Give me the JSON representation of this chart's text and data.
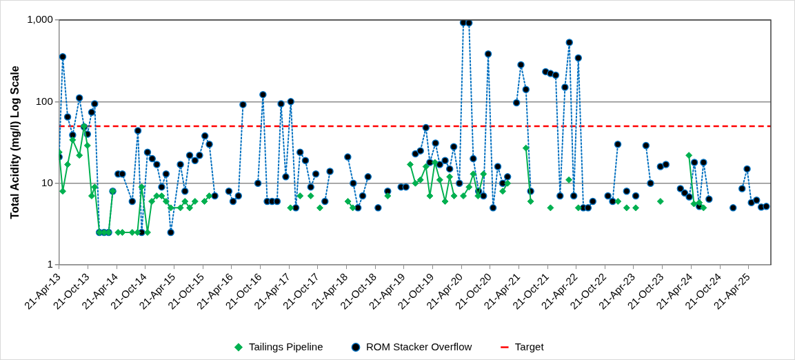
{
  "chart_data": {
    "type": "line",
    "ylabel": "Total Acidity (mg/l) Log Scale",
    "log": "y",
    "grid": "y",
    "legend": "bottom",
    "xlim": [
      "2013-04-21",
      "2025-09-10"
    ],
    "xticks": [
      {
        "value": "2013-04-21",
        "label": "21-Apr-13"
      },
      {
        "value": "2013-10-21",
        "label": "21-Oct-13"
      },
      {
        "value": "2014-04-21",
        "label": "21-Apr-14"
      },
      {
        "value": "2014-10-21",
        "label": "21-Oct-14"
      },
      {
        "value": "2015-04-21",
        "label": "21-Apr-15"
      },
      {
        "value": "2015-10-21",
        "label": "21-Oct-15"
      },
      {
        "value": "2016-04-21",
        "label": "21-Apr-16"
      },
      {
        "value": "2016-10-21",
        "label": "21-Oct-16"
      },
      {
        "value": "2017-04-21",
        "label": "21-Apr-17"
      },
      {
        "value": "2017-10-21",
        "label": "21-Oct-17"
      },
      {
        "value": "2018-04-21",
        "label": "21-Apr-18"
      },
      {
        "value": "2018-10-21",
        "label": "21-Oct-18"
      },
      {
        "value": "2019-04-21",
        "label": "21-Apr-19"
      },
      {
        "value": "2019-10-21",
        "label": "21-Oct-19"
      },
      {
        "value": "2020-04-21",
        "label": "21-Apr-20"
      },
      {
        "value": "2020-10-21",
        "label": "21-Oct-20"
      },
      {
        "value": "2021-04-21",
        "label": "21-Apr-21"
      },
      {
        "value": "2021-10-21",
        "label": "21-Oct-21"
      },
      {
        "value": "2022-04-21",
        "label": "21-Apr-22"
      },
      {
        "value": "2022-10-21",
        "label": "21-Oct-22"
      },
      {
        "value": "2023-04-21",
        "label": "21-Apr-23"
      },
      {
        "value": "2023-10-21",
        "label": "21-Oct-23"
      },
      {
        "value": "2024-04-21",
        "label": "21-Apr-24"
      },
      {
        "value": "2024-10-21",
        "label": "21-Oct-24"
      },
      {
        "value": "2025-04-21",
        "label": "21-Apr-25"
      }
    ],
    "ylim": [
      1,
      1000
    ],
    "yticks": [
      1,
      10,
      100,
      {
        "value": 1000,
        "label": "1,000"
      }
    ],
    "series": [
      {
        "name": "Tailings Pipeline",
        "color": "#00b050",
        "marker": "diamond",
        "line_style": "solid",
        "x": [
          "2013-04-21",
          "2013-05-14",
          "2013-06-14",
          "2013-07-16",
          "2013-08-28",
          "2013-09-27",
          "2013-10-18",
          "2013-11-14",
          "2013-12-03",
          "2014-01-02",
          "2014-02-01",
          "2014-03-02",
          "2014-03-28",
          "2014-04-15",
          "2014-05-01",
          "2014-05-28",
          "2014-07-30",
          "2014-09-01",
          "2014-09-28",
          "2014-11-04",
          "2014-12-01",
          "2015-01-01",
          "2015-02-02",
          "2015-03-02",
          "2015-04-01",
          "2015-06-01",
          "2015-06-30",
          "2015-07-30",
          "2015-09-02",
          "2015-10-01",
          "2015-11-01",
          "2015-12-01",
          "2016-06-01",
          "2017-05-01",
          "2017-06-01",
          "2017-07-01",
          "2017-08-01",
          "2017-09-07",
          "2017-10-05",
          "2017-11-04",
          "2018-02-01",
          "2018-05-01",
          "2018-06-01",
          "2018-09-01",
          "2019-01-09",
          "2019-03-01",
          "2019-06-01",
          "2019-07-04",
          "2019-08-05",
          "2019-09-09",
          "2019-10-04",
          "2019-11-05",
          "2019-12-06",
          "2020-01-09",
          "2020-02-07",
          "2020-03-06",
          "2020-04-05",
          "2020-05-04",
          "2020-06-09",
          "2020-07-06",
          "2020-08-05",
          "2020-09-09",
          "2020-11-01",
          "2021-01-09",
          "2021-02-09",
          "2021-04-01",
          "2021-06-06",
          "2021-07-06",
          "2021-09-01",
          "2021-11-09",
          "2022-01-01",
          "2022-03-06",
          "2022-04-01",
          "2022-05-05",
          "2022-09-01",
          "2023-01-12",
          "2023-02-10",
          "2023-03-08",
          "2023-04-05",
          "2023-05-05",
          "2023-07-01",
          "2023-10-09",
          "2024-01-01",
          "2024-04-07",
          "2024-05-09",
          "2024-06-12",
          "2024-07-09"
        ],
        "values": [
          24,
          8,
          17,
          34,
          22,
          50,
          29,
          7,
          9,
          2.5,
          2.5,
          2.5,
          8,
          null,
          2.5,
          2.5,
          2.5,
          2.5,
          9,
          2.5,
          6,
          7,
          7,
          6,
          5,
          5,
          6,
          5,
          6,
          null,
          6,
          7,
          null,
          5,
          null,
          7,
          null,
          7,
          null,
          5,
          null,
          6,
          5,
          null,
          7,
          null,
          17,
          10,
          11,
          16,
          7,
          18,
          11,
          6,
          12,
          7,
          null,
          7,
          9,
          13,
          7,
          13,
          null,
          8,
          10,
          null,
          27,
          6,
          null,
          5,
          null,
          11,
          null,
          5,
          null,
          6,
          null,
          5,
          null,
          5,
          null,
          6,
          null,
          22,
          5.6,
          5.8,
          5
        ]
      },
      {
        "name": "ROM Stacker Overflow",
        "color": "#0070c0",
        "marker": "circle",
        "line_style": "dotted",
        "x": [
          "2013-04-21",
          "2013-05-14",
          "2013-06-14",
          "2013-07-16",
          "2013-08-28",
          "2013-09-27",
          "2013-10-18",
          "2013-11-14",
          "2013-12-03",
          "2014-01-02",
          "2014-02-01",
          "2014-03-02",
          "2014-03-28",
          "2014-04-15",
          "2014-05-01",
          "2014-05-28",
          "2014-07-30",
          "2014-09-04",
          "2014-09-28",
          "2014-11-04",
          "2014-12-04",
          "2015-01-02",
          "2015-02-02",
          "2015-03-02",
          "2015-04-01",
          "2015-06-01",
          "2015-06-30",
          "2015-07-30",
          "2015-09-02",
          "2015-10-01",
          "2015-11-04",
          "2015-12-02",
          "2016-01-06",
          "2016-02-15",
          "2016-04-04",
          "2016-05-01",
          "2016-06-04",
          "2016-07-03",
          "2016-08-20",
          "2016-10-06",
          "2016-11-07",
          "2016-12-04",
          "2017-01-04",
          "2017-02-05",
          "2017-03-02",
          "2017-04-01",
          "2017-05-03",
          "2017-06-04",
          "2017-07-01",
          "2017-08-04",
          "2017-09-07",
          "2017-10-09",
          "2017-11-05",
          "2017-12-06",
          "2018-01-07",
          "2018-03-01",
          "2018-04-30",
          "2018-06-04",
          "2018-07-04",
          "2018-08-03",
          "2018-09-06",
          "2018-10-05",
          "2018-11-09",
          "2018-12-10",
          "2019-01-09",
          "2019-02-20",
          "2019-04-04",
          "2019-05-05",
          "2019-06-05",
          "2019-07-04",
          "2019-08-05",
          "2019-09-09",
          "2019-10-04",
          "2019-11-09",
          "2019-12-06",
          "2020-01-09",
          "2020-02-07",
          "2020-03-04",
          "2020-04-09",
          "2020-05-04",
          "2020-06-09",
          "2020-07-06",
          "2020-08-09",
          "2020-09-09",
          "2020-10-09",
          "2020-11-09",
          "2020-12-09",
          "2021-01-09",
          "2021-02-09",
          "2021-03-10",
          "2021-04-07",
          "2021-05-05",
          "2021-06-06",
          "2021-07-06",
          "2021-08-20",
          "2021-10-09",
          "2021-11-09",
          "2021-12-12",
          "2022-01-09",
          "2022-02-09",
          "2022-03-09",
          "2022-04-06",
          "2022-05-05",
          "2022-06-06",
          "2022-07-06",
          "2022-08-05",
          "2022-09-20",
          "2022-11-09",
          "2022-12-09",
          "2023-01-11",
          "2023-02-10",
          "2023-03-08",
          "2023-04-05",
          "2023-05-05",
          "2023-06-05",
          "2023-07-09",
          "2023-08-07",
          "2023-09-05",
          "2023-10-09",
          "2023-11-13",
          "2023-12-25",
          "2024-02-13",
          "2024-03-11",
          "2024-04-09",
          "2024-05-12",
          "2024-06-12",
          "2024-07-09",
          "2024-08-13",
          "2024-10-25",
          "2025-01-13",
          "2025-02-10",
          "2025-03-11",
          "2025-04-12",
          "2025-05-09",
          "2025-06-11",
          "2025-07-11",
          "2025-08-12"
        ],
        "values": [
          21,
          355,
          65,
          39,
          111,
          49,
          40,
          74,
          94,
          2.5,
          2.5,
          2.5,
          8,
          null,
          13,
          13,
          6,
          44,
          2.5,
          24,
          20,
          17,
          9,
          13,
          2.5,
          17,
          8,
          22,
          19,
          22,
          38,
          30,
          7,
          null,
          8,
          6,
          7,
          92,
          null,
          10,
          122,
          6,
          6,
          6,
          94,
          12,
          100,
          5,
          24,
          19,
          9,
          13,
          null,
          6,
          14,
          null,
          21,
          10,
          5,
          7,
          12,
          null,
          5,
          null,
          8,
          null,
          9,
          9,
          null,
          23,
          25,
          48,
          18,
          31,
          17,
          19,
          15,
          28,
          10,
          930,
          920,
          20,
          8,
          7,
          383,
          5,
          16,
          10,
          12,
          null,
          97,
          283,
          141,
          8,
          null,
          233,
          221,
          211,
          7,
          150,
          532,
          7,
          343,
          5,
          5,
          6,
          null,
          7,
          6,
          30,
          null,
          8,
          null,
          7,
          null,
          29,
          10,
          null,
          16,
          17,
          null,
          8.6,
          7.6,
          6.8,
          18,
          5.2,
          18,
          6.4,
          null,
          5,
          null,
          8.6,
          15,
          5.8,
          6.2,
          5.1,
          5.2
        ]
      }
    ],
    "ref_lines": [
      {
        "axis": "y",
        "value": 50,
        "label": "Target",
        "color": "#ff0000",
        "line_style": "dashed"
      }
    ]
  }
}
